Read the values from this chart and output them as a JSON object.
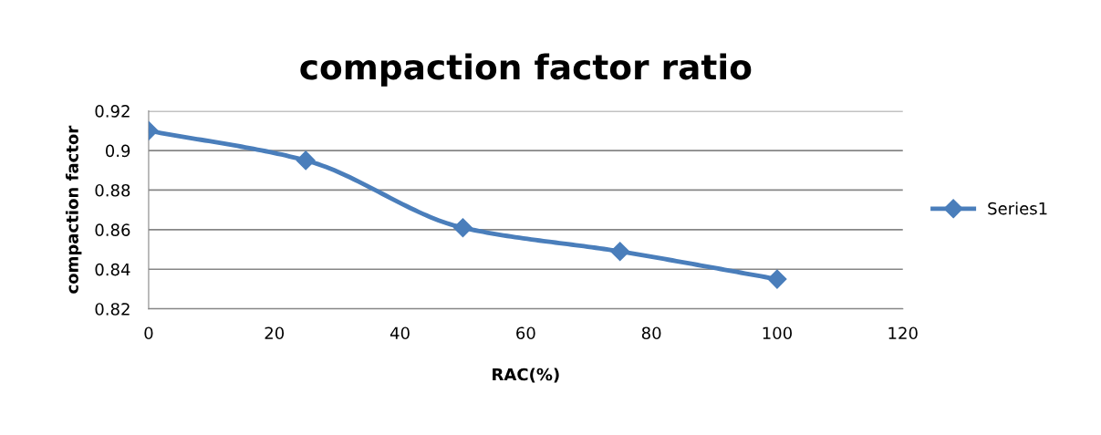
{
  "chart_data": {
    "type": "line",
    "title": "compaction factor ratio",
    "xlabel": "RAC(%)",
    "ylabel": "compaction factor",
    "x": [
      0,
      25,
      50,
      75,
      100
    ],
    "series": [
      {
        "name": "Series1",
        "color": "#4a7ebb",
        "values": [
          0.91,
          0.895,
          0.861,
          0.849,
          0.835
        ]
      }
    ],
    "xlim": [
      0,
      120
    ],
    "xticks": [
      0,
      20,
      40,
      60,
      80,
      100,
      120
    ],
    "ylim": [
      0.82,
      0.92
    ],
    "yticks": [
      0.82,
      0.84,
      0.86,
      0.88,
      0.9,
      0.92
    ],
    "grid": "y",
    "legend": "right",
    "marker": "diamond",
    "line_style": "solid"
  }
}
